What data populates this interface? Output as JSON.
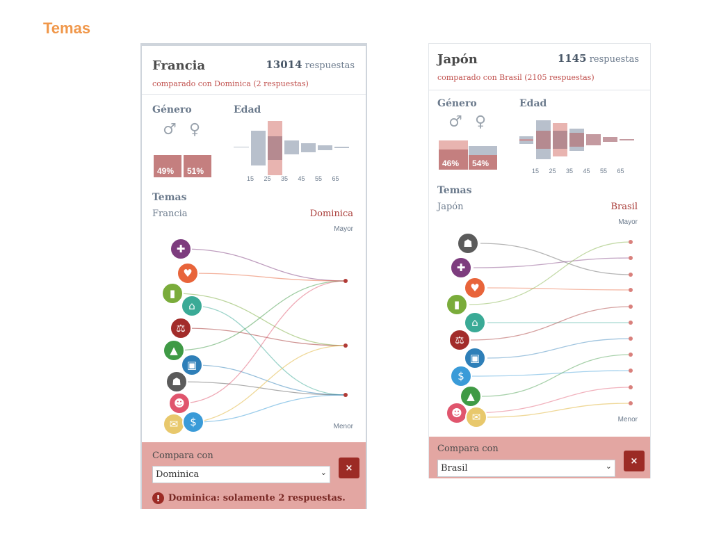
{
  "slide_title": "Temas",
  "colors": {
    "accent_orange": "#f0974a",
    "comparison_red": "#c0504d",
    "footer_pink": "#e3a6a2",
    "button_dark_red": "#9c2b25",
    "bar_grey": "#b8c0cc",
    "bar_pink": "#e8a9a4"
  },
  "left": {
    "country": "Francia",
    "responses_count": "13014",
    "responses_word": "respuestas",
    "compared_text": "comparado con Dominica (2 respuestas)",
    "gender_title": "Género",
    "male_icon": "male-symbol-icon",
    "female_icon": "female-symbol-icon",
    "male_pct": "49%",
    "female_pct": "51%",
    "age_title": "Edad",
    "age_ticks": [
      "15",
      "25",
      "35",
      "45",
      "55",
      "65"
    ],
    "topics_title": "Temas",
    "topics_left_label": "Francia",
    "topics_right_label": "Dominica",
    "mayor_label": "Mayor",
    "menor_label": "Menor",
    "topics": [
      {
        "icon": "health-cross-icon",
        "color": "#7d3c7e"
      },
      {
        "icon": "heart-icon",
        "color": "#e8643a"
      },
      {
        "icon": "book-icon",
        "color": "#7aac3b"
      },
      {
        "icon": "house-icon",
        "color": "#3aaa96"
      },
      {
        "icon": "justice-scales-icon",
        "color": "#a22c2a"
      },
      {
        "icon": "tree-icon",
        "color": "#3f9a45"
      },
      {
        "icon": "briefcase-icon",
        "color": "#2e7fb8"
      },
      {
        "icon": "runner-icon",
        "color": "#5b5b5b"
      },
      {
        "icon": "people-icon",
        "color": "#e0556d"
      },
      {
        "icon": "envelope-icon",
        "color": "#e8c86c"
      },
      {
        "icon": "money-icon",
        "color": "#3a9bd8"
      }
    ],
    "compare_label": "Compara con",
    "compare_value": "Dominica",
    "warning_text": "Dominica: solamente 2 respuestas."
  },
  "right": {
    "country": "Japón",
    "responses_count": "1145",
    "responses_word": "respuestas",
    "compared_text": "comparado con Brasil (2105 respuestas)",
    "gender_title": "Género",
    "male_icon": "male-symbol-icon",
    "female_icon": "female-symbol-icon",
    "male_pct": "46%",
    "female_pct": "54%",
    "age_title": "Edad",
    "age_ticks": [
      "15",
      "25",
      "35",
      "45",
      "55",
      "65"
    ],
    "topics_title": "Temas",
    "topics_left_label": "Japón",
    "topics_right_label": "Brasil",
    "mayor_label": "Mayor",
    "menor_label": "Menor",
    "topics": [
      {
        "icon": "runner-icon",
        "color": "#5b5b5b"
      },
      {
        "icon": "health-cross-icon",
        "color": "#7d3c7e"
      },
      {
        "icon": "heart-icon",
        "color": "#e8643a"
      },
      {
        "icon": "book-icon",
        "color": "#7aac3b"
      },
      {
        "icon": "house-icon",
        "color": "#3aaa96"
      },
      {
        "icon": "justice-scales-icon",
        "color": "#a22c2a"
      },
      {
        "icon": "briefcase-icon",
        "color": "#2e7fb8"
      },
      {
        "icon": "money-icon",
        "color": "#3a9bd8"
      },
      {
        "icon": "tree-icon",
        "color": "#3f9a45"
      },
      {
        "icon": "people-icon",
        "color": "#e0556d"
      },
      {
        "icon": "envelope-icon",
        "color": "#e8c86c"
      }
    ],
    "compare_label": "Compara con",
    "compare_value": "Brasil"
  }
}
